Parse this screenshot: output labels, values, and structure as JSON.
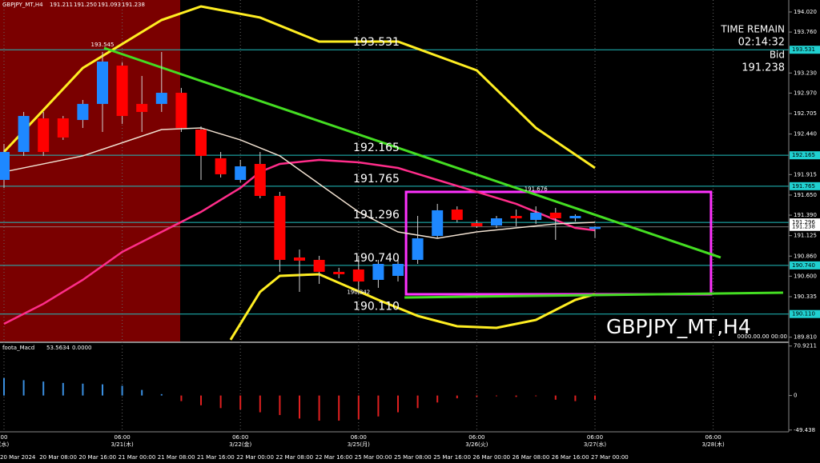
{
  "chart_data": {
    "type": "candlestick",
    "title": "GBPJPY_MT,H4",
    "ohlc_header": [
      191.211,
      {
        "value": 191.25,
        "label": "191.250"
      },
      191.093,
      191.238
    ],
    "watermark": "GBPJPY_MT,H4",
    "watermark_time": "0000.00.00 00:00",
    "time_remain_label": "TIME REMAIN",
    "time_remain": "02:14:32",
    "bid_label": "Bid",
    "bid": 191.238,
    "categories": [
      "20 Mar 2024",
      null,
      "20 Mar 08:00",
      null,
      "20 Mar 16:00",
      null,
      "21 Mar 00:00",
      null,
      "21 Mar 08:00",
      null,
      "21 Mar 16:00",
      null,
      "22 Mar 00:00",
      null,
      "22 Mar 08:00",
      null,
      "22 Mar 16:00",
      null,
      "25 Mar 00:00",
      null,
      "25 Mar 08:00",
      null,
      "25 Mar 16:00",
      null,
      "26 Mar 00:00",
      null,
      "26 Mar 08:00",
      null,
      "26 Mar 16:00",
      null,
      "27 Mar 00:00"
    ],
    "day_labels": [
      {
        "x": 0,
        "time": "00",
        "date": "(水)"
      },
      {
        "x": 6,
        "time": "06:00",
        "date": "3/21(木)"
      },
      {
        "x": 12,
        "time": "06:00",
        "date": "3/22(金)"
      },
      {
        "x": 18,
        "time": "06:00",
        "date": "3/25(月)"
      },
      {
        "x": 24,
        "time": "06:00",
        "date": "3/26(火)"
      },
      {
        "x": 30,
        "time": "06:00",
        "date": "3/27(水)"
      },
      {
        "x": 36,
        "time": "06:00",
        "date": "3/28(木)"
      }
    ],
    "open": [
      191.846,
      192.208,
      192.643,
      192.643,
      192.622,
      192.83,
      193.326,
      192.83,
      192.83,
      192.974,
      192.498,
      192.126,
      191.846,
      192.053,
      191.639,
      190.842,
      190.811,
      190.656,
      190.687,
      190.552,
      190.604,
      190.811,
      191.121,
      191.463,
      191.287,
      191.256,
      191.38,
      191.328,
      191.422,
      191.349,
      191.211
    ],
    "high": [
      192.312,
      192.726,
      192.726,
      192.674,
      192.881,
      193.502,
      193.368,
      193.192,
      193.502,
      193.037,
      192.54,
      192.208,
      192.105,
      192.208,
      191.691,
      190.945,
      190.863,
      190.708,
      190.863,
      190.811,
      190.863,
      191.38,
      191.536,
      191.504,
      191.328,
      191.38,
      191.463,
      191.504,
      191.484,
      191.401,
      191.25
    ],
    "low": [
      191.743,
      192.157,
      192.157,
      192.364,
      192.519,
      192.467,
      192.571,
      192.467,
      192.726,
      192.467,
      191.846,
      191.877,
      191.815,
      191.608,
      190.656,
      190.397,
      190.5,
      190.573,
      190.366,
      190.449,
      190.531,
      190.759,
      191.09,
      191.297,
      191.225,
      191.225,
      191.246,
      191.277,
      191.07,
      191.308,
      191.093
    ],
    "close": [
      192.208,
      192.674,
      192.208,
      192.395,
      192.83,
      193.378,
      192.674,
      192.726,
      192.974,
      192.519,
      192.157,
      191.919,
      192.022,
      191.639,
      190.811,
      190.801,
      190.656,
      190.625,
      190.531,
      190.759,
      190.759,
      191.09,
      191.453,
      191.328,
      191.246,
      191.349,
      191.349,
      191.422,
      191.349,
      191.38,
      191.238
    ],
    "up_color": "#1e88ff",
    "down_color": "#ff0000",
    "wick_color": "#d0d0d0",
    "ylim": [
      189.755,
      194.175
    ],
    "yticks": [
      {
        "value": 194.02,
        "label": "194.020"
      },
      {
        "value": 193.76,
        "label": "193.760"
      },
      {
        "value": 193.23,
        "label": "193.230"
      },
      {
        "value": 192.97,
        "label": "192.970"
      },
      192.705,
      {
        "value": 192.44,
        "label": "192.440"
      },
      191.915,
      {
        "value": 191.65,
        "label": "191.650"
      },
      {
        "value": 191.39,
        "label": "191.390"
      },
      191.125,
      {
        "value": 190.86,
        "label": "190.860"
      },
      {
        "value": 190.6,
        "label": "190.600"
      },
      190.335,
      {
        "value": 189.81,
        "label": "189.810"
      }
    ],
    "levels": [
      193.531,
      192.165,
      191.765,
      191.296,
      {
        "value": 190.74,
        "label": "190.740"
      },
      {
        "value": 190.11,
        "label": "190.110"
      }
    ],
    "level_color": "#20c0c0",
    "level_axis_colors": [
      "#20d0d0",
      "#20d0d0",
      "#20d0d0",
      "#ffffff",
      "#20d0d0",
      "#20d0d0"
    ],
    "price_marks": [
      {
        "x": 5,
        "value": 193.545
      },
      {
        "x": 27,
        "value": 191.676
      },
      {
        "x": 18,
        "value": 190.342
      }
    ],
    "series": [
      {
        "color": "#ffee22",
        "width": 3,
        "x": [
          0,
          4,
          8,
          10,
          13,
          16,
          20,
          24,
          27,
          30
        ],
        "values": [
          192.208,
          193.295,
          193.916,
          194.092,
          193.948,
          193.637,
          193.637,
          193.264,
          192.519,
          192.001
        ]
      },
      {
        "color": "#ffee22",
        "width": 3,
        "x": [
          11.5,
          13,
          14,
          16,
          19,
          21,
          23,
          25,
          27,
          29,
          30
        ],
        "values": [
          189.776,
          190.397,
          190.604,
          190.625,
          190.293,
          190.086,
          189.952,
          189.931,
          190.034,
          190.293,
          190.366
        ]
      },
      {
        "color": "#ff2d8a",
        "width": 2.5,
        "x": [
          0,
          2,
          4,
          6,
          8,
          10,
          12,
          13,
          14,
          16,
          18,
          20,
          22,
          24,
          26,
          28,
          29,
          30
        ],
        "values": [
          189.983,
          190.242,
          190.552,
          190.914,
          191.173,
          191.432,
          191.743,
          191.95,
          192.053,
          192.105,
          192.074,
          192.001,
          191.846,
          191.691,
          191.536,
          191.328,
          191.225,
          191.194
        ]
      },
      {
        "color": "#f0e0d0",
        "width": 1.5,
        "x": [
          0,
          4,
          8,
          10,
          12,
          14,
          16,
          18,
          20,
          22,
          24,
          26,
          28,
          30
        ],
        "values": [
          191.95,
          192.157,
          192.498,
          192.519,
          192.364,
          192.157,
          191.794,
          191.432,
          191.173,
          191.09,
          191.173,
          191.225,
          191.277,
          191.297
        ]
      },
      {
        "color": "#44dd22",
        "width": 3,
        "x": [
          5.08,
          36.38
        ],
        "values": [
          193.554,
          190.842
        ]
      },
      {
        "color": "#44dd22",
        "width": 3,
        "x": [
          20.33,
          39.55
        ],
        "values": [
          190.324,
          190.386
        ]
      }
    ],
    "box": {
      "x": [
        20.41,
        35.89
      ],
      "values": [
        191.691,
        190.366
      ],
      "color": "#ff33ff"
    },
    "macd": {
      "name": "foota_Macd",
      "value": 53.5634,
      "signal": {
        "value": 0,
        "label": "0.0000"
      },
      "values": [
        25,
        22,
        20,
        18,
        17,
        16,
        14,
        8,
        2,
        -8,
        -14,
        -18,
        -20,
        -24,
        -28,
        -33,
        -36,
        -36,
        -34,
        -30,
        -24,
        -18,
        -10,
        -4,
        -2,
        -1,
        -2,
        -1,
        -6,
        -8,
        -6
      ],
      "ylim": [
        -52,
        74
      ],
      "yticks": [
        70.9211,
        0,
        -49.438
      ],
      "up_color": "#3a8fe0",
      "down_color": "#e02020"
    }
  }
}
